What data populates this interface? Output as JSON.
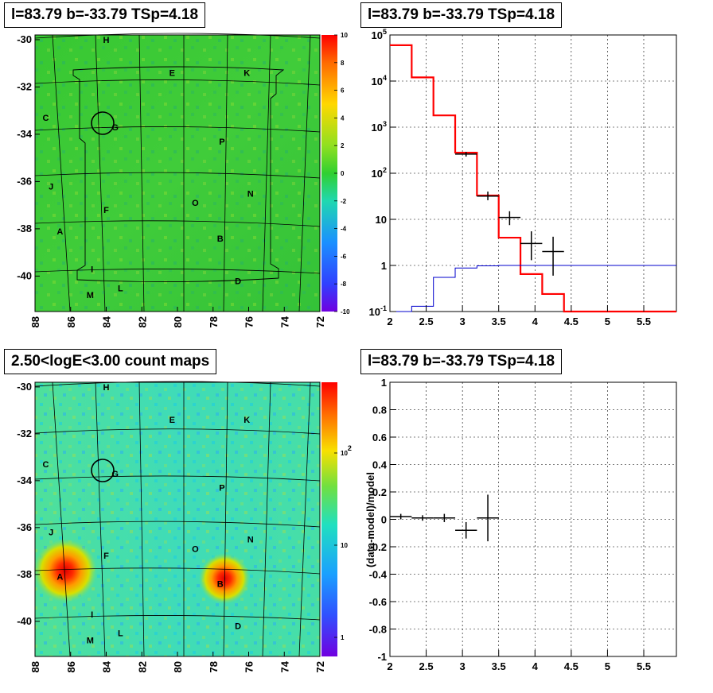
{
  "panels": {
    "top_left_title": "l=83.79 b=-33.79 TSp=4.18",
    "top_right_title": "l=83.79 b=-33.79 TSp=4.18",
    "bottom_left_title": "2.50<logE<3.00 count maps",
    "bottom_right_title": "l=83.79 b=-33.79 TSp=4.18"
  },
  "chart_data": [
    {
      "id": "tl-residual-map",
      "type": "heatmap",
      "title": "l=83.79 b=-33.79 TSp=4.18",
      "x_ticks": [
        "88",
        "86",
        "84",
        "82",
        "80",
        "78",
        "76",
        "74",
        "72"
      ],
      "y_ticks": [
        "-30",
        "-32",
        "-34",
        "-36",
        "-38",
        "-40"
      ],
      "xlim": [
        88,
        72
      ],
      "ylim": [
        -41.5,
        -29.8
      ],
      "colorbar": {
        "min": -10,
        "max": 10,
        "ticks": [
          "10",
          "8",
          "6",
          "4",
          "2",
          "0",
          "-2",
          "-4",
          "-6",
          "-8",
          "-10"
        ]
      },
      "source_labels": [
        {
          "label": "H",
          "l": 84.0,
          "b": -30.0
        },
        {
          "label": "E",
          "l": 80.3,
          "b": -31.4
        },
        {
          "label": "K",
          "l": 76.1,
          "b": -31.4
        },
        {
          "label": "C",
          "l": 87.4,
          "b": -33.3
        },
        {
          "label": "G",
          "l": 83.5,
          "b": -33.7
        },
        {
          "label": "P",
          "l": 77.5,
          "b": -34.3
        },
        {
          "label": "J",
          "l": 87.1,
          "b": -36.2
        },
        {
          "label": "N",
          "l": 75.9,
          "b": -36.5
        },
        {
          "label": "O",
          "l": 79.0,
          "b": -36.9
        },
        {
          "label": "F",
          "l": 84.0,
          "b": -37.2
        },
        {
          "label": "A",
          "l": 86.6,
          "b": -38.1
        },
        {
          "label": "B",
          "l": 77.6,
          "b": -38.4
        },
        {
          "label": "I",
          "l": 84.8,
          "b": -39.7
        },
        {
          "label": "D",
          "l": 76.6,
          "b": -40.2
        },
        {
          "label": "L",
          "l": 83.2,
          "b": -40.5
        },
        {
          "label": "M",
          "l": 84.9,
          "b": -40.8
        }
      ]
    },
    {
      "id": "tr-spectrum",
      "type": "line",
      "title": "l=83.79 b=-33.79 TSp=4.18",
      "x_scale": "linear",
      "y_scale": "log",
      "xlim": [
        2,
        5.95
      ],
      "ylim": [
        0.1,
        100000
      ],
      "x_ticks": [
        "2",
        "2.5",
        "3",
        "3.5",
        "4",
        "4.5",
        "5",
        "5.5"
      ],
      "y_ticks": [
        "10^-1",
        "1",
        "10",
        "10^2",
        "10^3",
        "10^4",
        "10^5"
      ],
      "grid": true,
      "series": [
        {
          "color": "#ff0000",
          "style": "step",
          "edges": [
            2.0,
            2.3,
            2.6,
            2.9,
            3.2,
            3.5,
            3.8,
            4.1,
            4.4,
            5.95
          ],
          "values": [
            60000,
            12000,
            1800,
            280,
            33,
            4,
            0.65,
            0.24,
            0.1
          ]
        },
        {
          "color": "#0000cc",
          "style": "step",
          "edges": [
            2.0,
            2.3,
            2.6,
            2.9,
            3.2,
            3.5,
            3.8,
            5.95
          ],
          "values": [
            0.1,
            0.13,
            0.55,
            0.88,
            0.98,
            1.0,
            1.0
          ]
        },
        {
          "color": "#000000",
          "style": "errorbar",
          "points": [
            {
              "x": 3.05,
              "y": 260,
              "xerr": 0.15,
              "ylo": 230,
              "yhi": 290
            },
            {
              "x": 3.35,
              "y": 32,
              "xerr": 0.15,
              "ylo": 26,
              "yhi": 40
            },
            {
              "x": 3.65,
              "y": 11,
              "xerr": 0.15,
              "ylo": 7.5,
              "yhi": 15
            },
            {
              "x": 3.95,
              "y": 3,
              "xerr": 0.15,
              "ylo": 1.3,
              "yhi": 5.5
            },
            {
              "x": 4.25,
              "y": 2,
              "xerr": 0.15,
              "ylo": 0.6,
              "yhi": 4.2
            }
          ]
        }
      ]
    },
    {
      "id": "bl-count-map",
      "type": "heatmap",
      "title": "2.50<logE<3.00 count maps",
      "x_ticks": [
        "88",
        "86",
        "84",
        "82",
        "80",
        "78",
        "76",
        "74",
        "72"
      ],
      "y_ticks": [
        "-30",
        "-32",
        "-34",
        "-36",
        "-38",
        "-40"
      ],
      "xlim": [
        88,
        72
      ],
      "ylim": [
        -41.5,
        -29.8
      ],
      "colorbar": {
        "scale": "log",
        "ticks": [
          "10^2",
          "10",
          "1"
        ]
      },
      "source_labels": [
        {
          "label": "H",
          "l": 84.0,
          "b": -30.0
        },
        {
          "label": "E",
          "l": 80.3,
          "b": -31.4
        },
        {
          "label": "K",
          "l": 76.1,
          "b": -31.4
        },
        {
          "label": "C",
          "l": 87.4,
          "b": -33.3
        },
        {
          "label": "G",
          "l": 83.5,
          "b": -33.7
        },
        {
          "label": "P",
          "l": 77.5,
          "b": -34.3
        },
        {
          "label": "J",
          "l": 87.1,
          "b": -36.2
        },
        {
          "label": "N",
          "l": 75.9,
          "b": -36.5
        },
        {
          "label": "O",
          "l": 79.0,
          "b": -36.9
        },
        {
          "label": "F",
          "l": 84.0,
          "b": -37.2
        },
        {
          "label": "A",
          "l": 86.6,
          "b": -38.1
        },
        {
          "label": "B",
          "l": 77.6,
          "b": -38.4
        },
        {
          "label": "I",
          "l": 84.8,
          "b": -39.7
        },
        {
          "label": "D",
          "l": 76.6,
          "b": -40.2
        },
        {
          "label": "L",
          "l": 83.2,
          "b": -40.5
        },
        {
          "label": "M",
          "l": 84.9,
          "b": -40.8
        }
      ]
    },
    {
      "id": "br-residual",
      "type": "scatter",
      "title": "l=83.79 b=-33.79 TSp=4.18",
      "ylabel": "(data-model)/model",
      "xlim": [
        2,
        5.95
      ],
      "ylim": [
        -1,
        1
      ],
      "x_ticks": [
        "2",
        "2.5",
        "3",
        "3.5",
        "4",
        "4.5",
        "5",
        "5.5"
      ],
      "y_ticks": [
        "1",
        "0.8",
        "0.6",
        "0.4",
        "0.2",
        "0",
        "-0.2",
        "-0.4",
        "-0.6",
        "-0.8",
        "-1"
      ],
      "grid": true,
      "points": [
        {
          "x": 2.15,
          "y": 0.02,
          "xerr": 0.15,
          "yerr": 0.02
        },
        {
          "x": 2.45,
          "y": 0.01,
          "xerr": 0.15,
          "yerr": 0.02
        },
        {
          "x": 2.75,
          "y": 0.01,
          "xerr": 0.15,
          "yerr": 0.03
        },
        {
          "x": 3.05,
          "y": -0.08,
          "xerr": 0.15,
          "yerr": 0.06
        },
        {
          "x": 3.35,
          "y": 0.01,
          "xerr": 0.15,
          "yerr": 0.17
        }
      ]
    }
  ]
}
